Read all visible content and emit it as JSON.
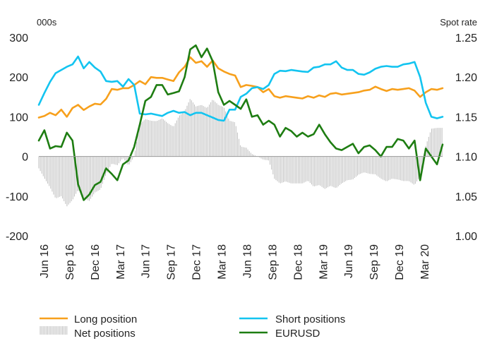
{
  "chart_data": {
    "type": "line",
    "left_axis": {
      "label": "000s",
      "ticks": [
        300,
        200,
        100,
        0,
        -100,
        -200
      ],
      "range": [
        -200,
        300
      ]
    },
    "right_axis": {
      "label": "Spot rate",
      "ticks": [
        "1.25",
        "1.20",
        "1.15",
        "1.10",
        "1.05",
        "1.00"
      ],
      "range": [
        1.0,
        1.25
      ]
    },
    "x_ticks": [
      "Jun 16",
      "Sep 16",
      "Dec 16",
      "Mar 17",
      "Jun 17",
      "Sep 17",
      "Dec 17",
      "Mar 18",
      "Jun 18",
      "Sep 18",
      "Dec 18",
      "Mar 19",
      "Jun 19",
      "Sep 19",
      "Dec 19",
      "Mar 20"
    ],
    "grid": false,
    "legend_position": "bottom",
    "series": [
      {
        "name": "Long position",
        "axis": "left",
        "style": "line",
        "color": "#F7A01C",
        "values": [
          98,
          102,
          110,
          104,
          118,
          100,
          122,
          130,
          117,
          126,
          133,
          131,
          145,
          170,
          168,
          172,
          172,
          180,
          190,
          182,
          200,
          198,
          198,
          194,
          190,
          212,
          226,
          250,
          236,
          240,
          226,
          242,
          222,
          214,
          208,
          204,
          175,
          180,
          178,
          175,
          162,
          170,
          152,
          148,
          152,
          150,
          148,
          146,
          152,
          148,
          154,
          150,
          158,
          160,
          156,
          158,
          160,
          162,
          166,
          168,
          176,
          170,
          165,
          170,
          168,
          170,
          172,
          166,
          150,
          162,
          170,
          168,
          172
        ]
      },
      {
        "name": "Short positions",
        "axis": "left",
        "style": "line",
        "color": "#13C4F0",
        "values": [
          130,
          160,
          188,
          210,
          218,
          226,
          232,
          252,
          222,
          238,
          224,
          214,
          190,
          188,
          190,
          176,
          195,
          180,
          108,
          106,
          108,
          105,
          102,
          110,
          115,
          110,
          112,
          104,
          110,
          110,
          104,
          98,
          92,
          90,
          118,
          118,
          150,
          158,
          172,
          175,
          170,
          180,
          208,
          216,
          215,
          218,
          216,
          214,
          213,
          224,
          226,
          232,
          232,
          240,
          224,
          218,
          218,
          208,
          206,
          212,
          221,
          226,
          228,
          226,
          226,
          232,
          234,
          238,
          200,
          135,
          100,
          96,
          100
        ]
      },
      {
        "name": "Net positions",
        "axis": "left",
        "style": "bar",
        "color": "#BEBEBE",
        "values": [
          -30,
          -55,
          -78,
          -106,
          -100,
          -126,
          -110,
          -84,
          -105,
          -112,
          -91,
          -83,
          -45,
          -18,
          -22,
          -4,
          -23,
          0,
          82,
          94,
          90,
          89,
          96,
          84,
          75,
          102,
          114,
          146,
          126,
          130,
          122,
          144,
          130,
          124,
          90,
          86,
          25,
          22,
          6,
          0,
          -8,
          -10,
          -56,
          -68,
          -63,
          -68,
          -68,
          -68,
          -61,
          -76,
          -72,
          -82,
          -74,
          -80,
          -68,
          -60,
          -58,
          -46,
          -40,
          -44,
          -45,
          -56,
          -63,
          -56,
          -58,
          -62,
          -62,
          -72,
          -50,
          27,
          70,
          72,
          72
        ]
      },
      {
        "name": "EURUSD",
        "axis": "right",
        "style": "line",
        "color": "#1E7D12",
        "values": [
          1.12,
          1.133,
          1.11,
          1.113,
          1.112,
          1.13,
          1.12,
          1.065,
          1.045,
          1.052,
          1.064,
          1.068,
          1.085,
          1.078,
          1.07,
          1.09,
          1.095,
          1.112,
          1.14,
          1.17,
          1.175,
          1.19,
          1.19,
          1.178,
          1.18,
          1.182,
          1.2,
          1.235,
          1.24,
          1.225,
          1.236,
          1.22,
          1.181,
          1.165,
          1.17,
          1.165,
          1.16,
          1.172,
          1.15,
          1.152,
          1.14,
          1.145,
          1.14,
          1.125,
          1.136,
          1.132,
          1.125,
          1.13,
          1.125,
          1.128,
          1.14,
          1.128,
          1.118,
          1.11,
          1.108,
          1.112,
          1.116,
          1.104,
          1.112,
          1.114,
          1.108,
          1.1,
          1.112,
          1.112,
          1.122,
          1.12,
          1.11,
          1.12,
          1.07,
          1.11,
          1.1,
          1.09,
          1.115
        ]
      }
    ]
  }
}
